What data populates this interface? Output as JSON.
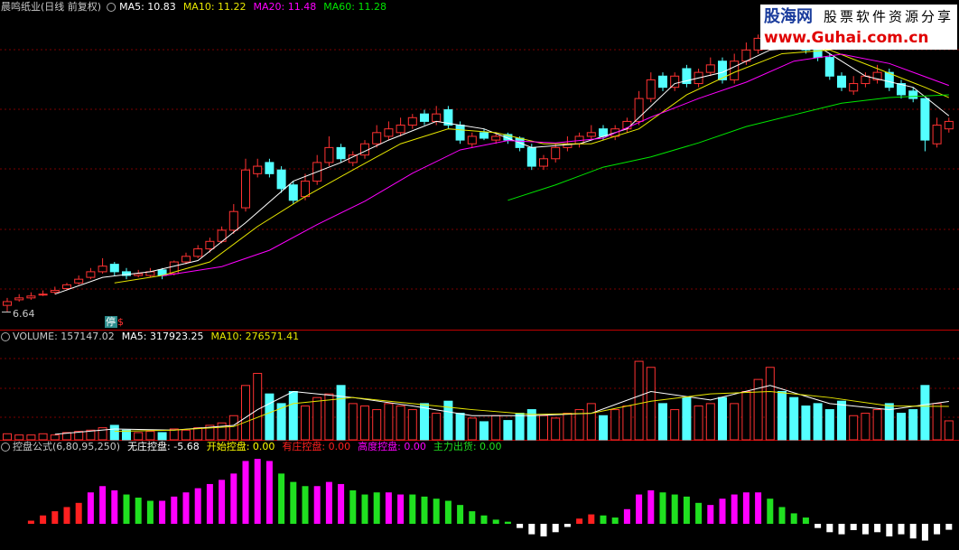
{
  "chart_data": [
    {
      "type": "candlestick",
      "title": "晨鸣纸业(日线 前复权)",
      "open": [
        6.77,
        6.89,
        6.93,
        7.01,
        7.05,
        7.13,
        7.25,
        7.37,
        7.49,
        7.65,
        7.49,
        7.41,
        7.41,
        7.53,
        7.45,
        7.7,
        7.82,
        7.98,
        8.14,
        8.38,
        8.86,
        9.59,
        9.83,
        9.67,
        9.35,
        9.1,
        9.43,
        9.83,
        10.15,
        9.83,
        9.99,
        10.23,
        10.39,
        10.47,
        10.63,
        10.87,
        10.71,
        10.96,
        10.63,
        10.23,
        10.47,
        10.31,
        10.43,
        10.35,
        10.15,
        9.75,
        9.91,
        10.15,
        10.23,
        10.39,
        10.55,
        10.39,
        10.55,
        10.71,
        11.2,
        11.68,
        11.44,
        11.84,
        11.52,
        11.76,
        12.0,
        11.6,
        12.0,
        12.24,
        12.49,
        12.89,
        12.65,
        12.49,
        12.32,
        12.08,
        11.68,
        11.36,
        11.52,
        11.6,
        11.76,
        11.52,
        11.36,
        11.2,
        10.23,
        10.55
      ],
      "close": [
        6.85,
        6.93,
        6.97,
        7.01,
        7.09,
        7.21,
        7.33,
        7.49,
        7.61,
        7.49,
        7.41,
        7.45,
        7.49,
        7.41,
        7.7,
        7.82,
        7.98,
        8.14,
        8.38,
        8.78,
        9.67,
        9.75,
        9.59,
        9.27,
        9.02,
        9.43,
        9.83,
        10.15,
        9.91,
        9.99,
        10.23,
        10.47,
        10.55,
        10.63,
        10.79,
        10.71,
        10.87,
        10.63,
        10.31,
        10.39,
        10.35,
        10.39,
        10.31,
        10.15,
        9.75,
        9.91,
        10.15,
        10.23,
        10.39,
        10.47,
        10.39,
        10.55,
        10.71,
        11.2,
        11.6,
        11.44,
        11.68,
        11.52,
        11.76,
        11.92,
        11.6,
        12.0,
        12.24,
        12.49,
        12.81,
        12.49,
        12.4,
        12.24,
        12.08,
        11.68,
        11.44,
        11.52,
        11.68,
        11.76,
        11.44,
        11.28,
        11.2,
        10.31,
        10.63,
        10.71
      ],
      "high": [
        6.93,
        7.01,
        7.05,
        7.09,
        7.17,
        7.25,
        7.41,
        7.57,
        7.78,
        7.7,
        7.57,
        7.53,
        7.57,
        7.57,
        7.73,
        7.9,
        8.06,
        8.22,
        8.46,
        8.94,
        9.91,
        9.91,
        9.91,
        9.75,
        9.43,
        9.59,
        9.99,
        10.39,
        10.23,
        10.07,
        10.31,
        10.63,
        10.71,
        10.79,
        10.87,
        10.96,
        11.04,
        11.04,
        10.71,
        10.47,
        10.55,
        10.47,
        10.47,
        10.39,
        10.23,
        9.99,
        10.23,
        10.39,
        10.47,
        10.63,
        10.63,
        10.63,
        10.79,
        11.36,
        11.76,
        11.76,
        11.76,
        11.92,
        11.84,
        12.08,
        12.08,
        12.16,
        12.4,
        12.57,
        12.97,
        12.97,
        12.73,
        12.57,
        12.4,
        12.16,
        11.76,
        11.68,
        11.76,
        11.92,
        11.84,
        11.6,
        11.44,
        11.2,
        10.79,
        10.79
      ],
      "low": [
        6.64,
        6.85,
        6.89,
        6.97,
        7.01,
        7.09,
        7.21,
        7.33,
        7.45,
        7.41,
        7.33,
        7.37,
        7.37,
        7.33,
        7.41,
        7.65,
        7.78,
        7.9,
        8.1,
        8.3,
        8.78,
        9.51,
        9.51,
        9.18,
        8.94,
        9.02,
        9.35,
        9.75,
        9.83,
        9.75,
        9.91,
        10.15,
        10.31,
        10.39,
        10.55,
        10.63,
        10.63,
        10.55,
        10.23,
        10.15,
        10.31,
        10.23,
        10.23,
        10.07,
        9.67,
        9.67,
        9.83,
        10.07,
        10.15,
        10.31,
        10.31,
        10.31,
        10.47,
        10.63,
        11.12,
        11.36,
        11.36,
        11.44,
        11.44,
        11.68,
        11.52,
        11.52,
        11.92,
        12.16,
        12.4,
        12.4,
        12.32,
        12.16,
        12.0,
        11.6,
        11.36,
        11.28,
        11.44,
        11.52,
        11.36,
        11.2,
        11.12,
        10.07,
        10.15,
        10.47
      ],
      "up_color": "#ff3232",
      "down_color": "#54ffff",
      "lines": [
        {
          "name": "MA5: 10.83",
          "color": "#ffffff",
          "x": [
            4,
            8,
            12,
            16,
            20,
            24,
            28,
            32,
            36,
            40,
            44,
            48,
            52,
            56,
            60,
            64,
            68,
            72,
            76,
            79
          ],
          "values": [
            7.01,
            7.37,
            7.49,
            7.73,
            8.54,
            9.43,
            9.83,
            10.31,
            10.71,
            10.55,
            10.15,
            10.23,
            10.55,
            11.52,
            11.76,
            12.24,
            12.32,
            11.68,
            11.44,
            10.83
          ]
        },
        {
          "name": "MA10: 11.22",
          "color": "#e6e600",
          "x": [
            9,
            13,
            17,
            21,
            25,
            29,
            33,
            37,
            41,
            45,
            49,
            53,
            57,
            61,
            65,
            69,
            73,
            77,
            79
          ],
          "values": [
            7.25,
            7.41,
            7.7,
            8.46,
            9.1,
            9.67,
            10.23,
            10.55,
            10.47,
            10.23,
            10.23,
            10.55,
            11.28,
            11.76,
            12.16,
            12.24,
            11.84,
            11.44,
            11.22
          ]
        },
        {
          "name": "MA20: 11.48",
          "color": "#ff00ff",
          "x": [
            13,
            18,
            22,
            26,
            30,
            34,
            38,
            42,
            46,
            50,
            54,
            58,
            62,
            66,
            70,
            74,
            79
          ],
          "values": [
            7.4,
            7.6,
            7.95,
            8.5,
            9.0,
            9.6,
            10.1,
            10.3,
            10.25,
            10.35,
            10.8,
            11.2,
            11.55,
            12.0,
            12.15,
            11.95,
            11.48
          ]
        },
        {
          "name": "MA60: 11.28",
          "color": "#00e600",
          "x": [
            42,
            46,
            50,
            54,
            58,
            62,
            66,
            70,
            74,
            79
          ],
          "values": [
            9.02,
            9.35,
            9.73,
            9.95,
            10.25,
            10.6,
            10.85,
            11.1,
            11.22,
            11.28
          ]
        }
      ],
      "ylim": [
        6.25,
        13.31
      ],
      "low_label": "6.64",
      "stop_marker": "停",
      "stop_symbol": "$"
    },
    {
      "type": "bar",
      "title": "VOLUME: 157147.02",
      "values": [
        50000,
        40000,
        40000,
        50000,
        40000,
        60000,
        70000,
        80000,
        100000,
        120000,
        80000,
        60000,
        70000,
        60000,
        90000,
        80000,
        100000,
        120000,
        140000,
        200000,
        450000,
        550000,
        380000,
        300000,
        400000,
        280000,
        350000,
        380000,
        450000,
        300000,
        280000,
        250000,
        300000,
        280000,
        250000,
        300000,
        220000,
        320000,
        220000,
        180000,
        150000,
        200000,
        160000,
        220000,
        250000,
        200000,
        180000,
        220000,
        250000,
        300000,
        200000,
        250000,
        280000,
        650000,
        600000,
        300000,
        250000,
        350000,
        280000,
        300000,
        350000,
        300000,
        400000,
        500000,
        600000,
        400000,
        350000,
        280000,
        300000,
        250000,
        320000,
        200000,
        220000,
        250000,
        300000,
        220000,
        250000,
        450000,
        300000,
        157147.02
      ],
      "lines": [
        {
          "name": "MA5: 317923.25",
          "color": "#ffffff",
          "x": [
            4,
            9,
            14,
            19,
            21,
            24,
            29,
            34,
            39,
            44,
            49,
            54,
            59,
            64,
            69,
            74,
            79
          ],
          "values": [
            46000,
            90000,
            80000,
            120000,
            250000,
            400000,
            350000,
            280000,
            200000,
            200000,
            220000,
            400000,
            330000,
            450000,
            300000,
            250000,
            317923.25
          ]
        },
        {
          "name": "MA10: 276571.41",
          "color": "#e6e600",
          "x": [
            9,
            14,
            19,
            24,
            29,
            34,
            39,
            44,
            49,
            54,
            59,
            64,
            69,
            74,
            79
          ],
          "values": [
            70000,
            80000,
            110000,
            300000,
            350000,
            300000,
            250000,
            210000,
            220000,
            320000,
            380000,
            400000,
            350000,
            280000,
            276571.41
          ]
        }
      ],
      "ylim": [
        0,
        800000
      ]
    },
    {
      "type": "bar",
      "title": "控盘公式(6,80,95,250)",
      "series": [
        {
          "name": "无庄控盘: -5.68",
          "color": "#ffffff"
        },
        {
          "name": "开始控盘: 0.00",
          "color": "#ffff00"
        },
        {
          "name": "有庄控盘: 0.00",
          "color": "#ff2020"
        },
        {
          "name": "高度控盘: 0.00",
          "color": "#ff00ff"
        },
        {
          "name": "主力出货: 0.00",
          "color": "#20e020"
        }
      ],
      "values": [
        0,
        0,
        3,
        8,
        12,
        16,
        20,
        30,
        36,
        32,
        28,
        25,
        22,
        22,
        26,
        30,
        34,
        38,
        42,
        48,
        60,
        62,
        60,
        48,
        40,
        36,
        36,
        40,
        38,
        32,
        28,
        30,
        30,
        28,
        28,
        26,
        24,
        22,
        18,
        12,
        8,
        4,
        2,
        -4,
        -10,
        -12,
        -8,
        -3,
        5,
        9,
        8,
        6,
        14,
        28,
        32,
        30,
        28,
        26,
        20,
        18,
        24,
        28,
        30,
        30,
        24,
        16,
        10,
        6,
        -4,
        -8,
        -10,
        -6,
        -10,
        -8,
        -12,
        -10,
        -14,
        -16,
        -10,
        -5.68
      ],
      "groups": [
        1,
        1,
        2,
        2,
        2,
        2,
        2,
        3,
        3,
        3,
        4,
        4,
        4,
        3,
        3,
        3,
        3,
        3,
        3,
        3,
        3,
        3,
        3,
        4,
        4,
        4,
        3,
        3,
        3,
        4,
        4,
        4,
        3,
        3,
        4,
        4,
        4,
        4,
        4,
        4,
        4,
        4,
        4,
        0,
        0,
        0,
        0,
        0,
        2,
        2,
        4,
        4,
        3,
        3,
        3,
        4,
        4,
        4,
        4,
        3,
        3,
        3,
        3,
        3,
        4,
        4,
        4,
        4,
        0,
        0,
        0,
        0,
        0,
        0,
        0,
        0,
        0,
        0,
        0,
        0
      ],
      "ylim": [
        -25,
        69
      ]
    }
  ],
  "watermark": {
    "logo": "股海网",
    "slogan": "股票软件资源分享",
    "url": "www.Guhai.com.cn"
  }
}
